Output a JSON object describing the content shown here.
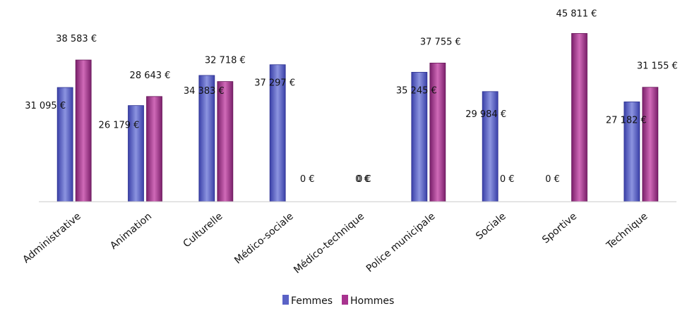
{
  "chart_data": {
    "type": "bar",
    "categories": [
      "Administrative",
      "Animation",
      "Culturelle",
      "Médico-sociale",
      "Médico-technique",
      "Police municipale",
      "Sociale",
      "Sportive",
      "Technique"
    ],
    "series": [
      {
        "name": "Femmes",
        "color": "#5a62c6",
        "values": [
          31095,
          26179,
          34383,
          37297,
          0,
          35245,
          29984,
          0,
          27182
        ],
        "value_labels": [
          "31 095 €",
          "26 179 €",
          "34 383 €",
          "37 297 €",
          "0 €",
          "35 245 €",
          "29 984 €",
          "0 €",
          "27 182 €"
        ]
      },
      {
        "name": "Hommes",
        "color": "#a8338f",
        "values": [
          38583,
          28643,
          32718,
          0,
          0,
          37755,
          0,
          45811,
          31155
        ],
        "value_labels": [
          "38 583 €",
          "28 643 €",
          "32 718 €",
          "0 €",
          "0 €",
          "37 755 €",
          "0 €",
          "45 811 €",
          "31 155 €"
        ]
      }
    ],
    "ylim": [
      0,
      48000
    ],
    "grid": false,
    "legend_position": "bottom"
  }
}
